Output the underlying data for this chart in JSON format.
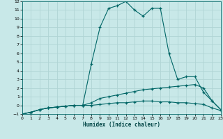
{
  "xlabel": "Humidex (Indice chaleur)",
  "bg_color": "#c8e8e8",
  "line_color": "#006666",
  "grid_color": "#b0d4d4",
  "xlim": [
    0,
    23
  ],
  "ylim": [
    -1,
    12
  ],
  "xticks": [
    0,
    1,
    2,
    3,
    4,
    5,
    6,
    7,
    8,
    9,
    10,
    11,
    12,
    13,
    14,
    15,
    16,
    17,
    18,
    19,
    20,
    21,
    22,
    23
  ],
  "yticks": [
    -1,
    0,
    1,
    2,
    3,
    4,
    5,
    6,
    7,
    8,
    9,
    10,
    11,
    12
  ],
  "line1_x": [
    0,
    1,
    2,
    3,
    4,
    5,
    6,
    7,
    8,
    9,
    10,
    11,
    12,
    13,
    14,
    15,
    16,
    17,
    18,
    19,
    20,
    21,
    22,
    23
  ],
  "line1_y": [
    -1,
    -0.8,
    -0.5,
    -0.3,
    -0.2,
    -0.1,
    0,
    0,
    0,
    0.1,
    0.2,
    0.3,
    0.3,
    0.4,
    0.5,
    0.5,
    0.4,
    0.4,
    0.3,
    0.3,
    0.2,
    0.1,
    -0.3,
    -0.6
  ],
  "line2_x": [
    0,
    1,
    2,
    3,
    4,
    5,
    6,
    7,
    8,
    9,
    10,
    11,
    12,
    13,
    14,
    15,
    16,
    17,
    18,
    19,
    20,
    21,
    22,
    23
  ],
  "line2_y": [
    -1,
    -0.8,
    -0.5,
    -0.3,
    -0.2,
    -0.1,
    0,
    0,
    0.3,
    0.8,
    1.0,
    1.2,
    1.4,
    1.6,
    1.8,
    1.9,
    2.0,
    2.1,
    2.2,
    2.3,
    2.4,
    2.0,
    0.5,
    -0.5
  ],
  "line3_x": [
    0,
    1,
    2,
    3,
    4,
    5,
    6,
    7,
    8,
    9,
    10,
    11,
    12,
    13,
    14,
    15,
    16,
    17,
    18,
    19,
    20,
    21,
    22,
    23
  ],
  "line3_y": [
    -1,
    -0.8,
    -0.5,
    -0.3,
    -0.2,
    -0.1,
    0,
    0,
    4.8,
    9.0,
    11.2,
    11.5,
    12.0,
    11.0,
    10.3,
    11.2,
    11.2,
    6.0,
    3.0,
    3.3,
    3.3,
    1.5,
    0.5,
    -0.5
  ]
}
